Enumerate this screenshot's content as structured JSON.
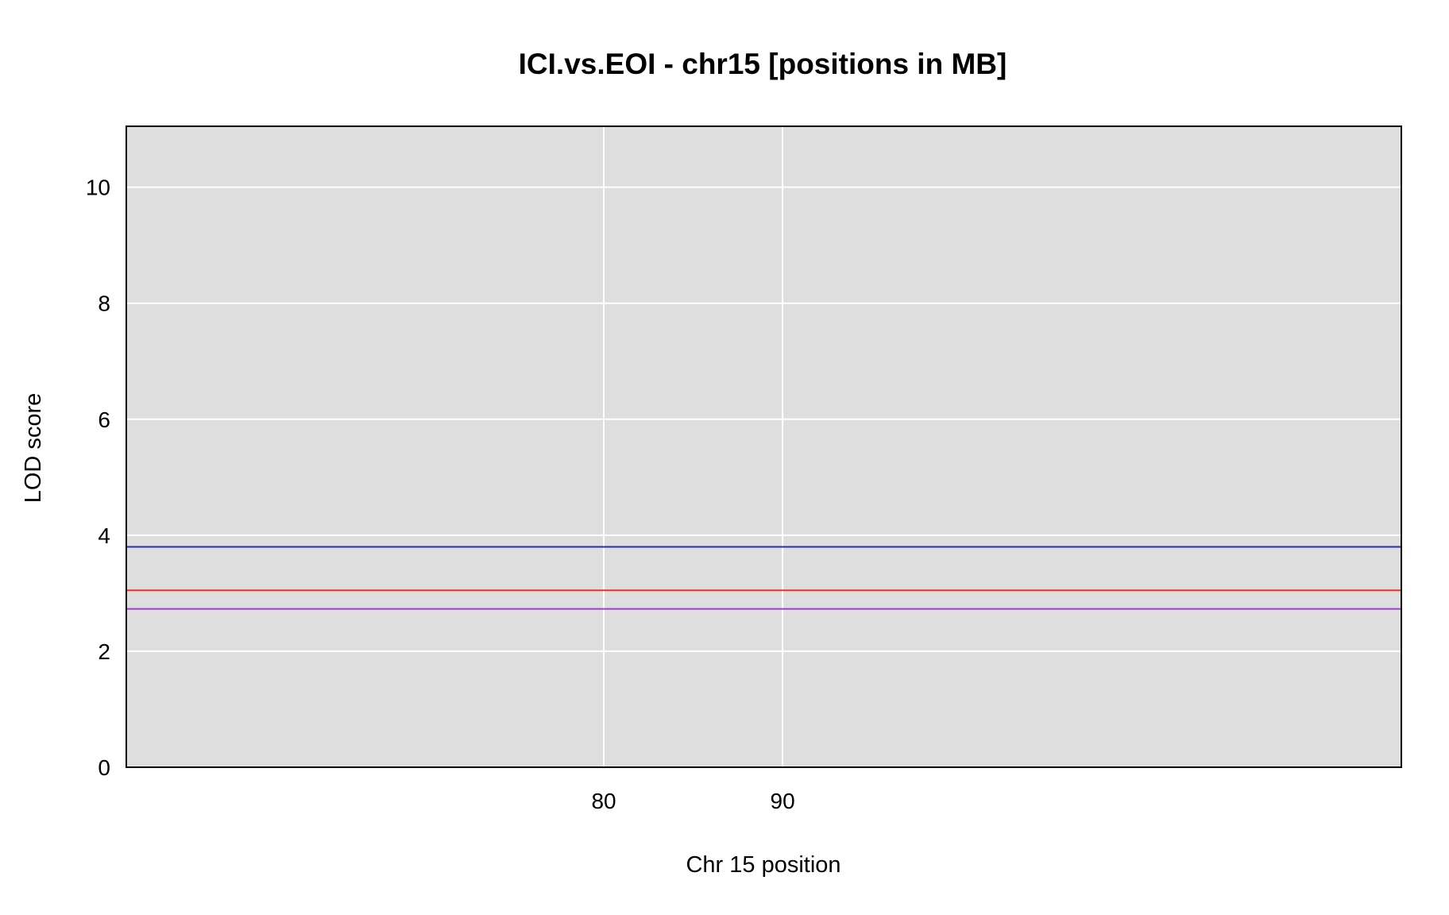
{
  "chart_data": {
    "type": "line",
    "title": "ICI.vs.EOI - chr15 [positions in MB]",
    "xlabel": "Chr 15 position",
    "ylabel": "LOD score",
    "xlim": [
      53.3,
      124.6
    ],
    "ylim": [
      0,
      11.05
    ],
    "x_ticks": [
      80,
      90
    ],
    "y_ticks": [
      0,
      2,
      4,
      6,
      8,
      10
    ],
    "grid": true,
    "background": "#dedede",
    "gridline_color": "#ffffff",
    "threshold_lines": [
      {
        "value": 3.8,
        "color": "#2b2bb5"
      },
      {
        "value": 3.05,
        "color": "#e8322b"
      },
      {
        "value": 2.73,
        "color": "#9a3fd0"
      }
    ],
    "series": []
  }
}
